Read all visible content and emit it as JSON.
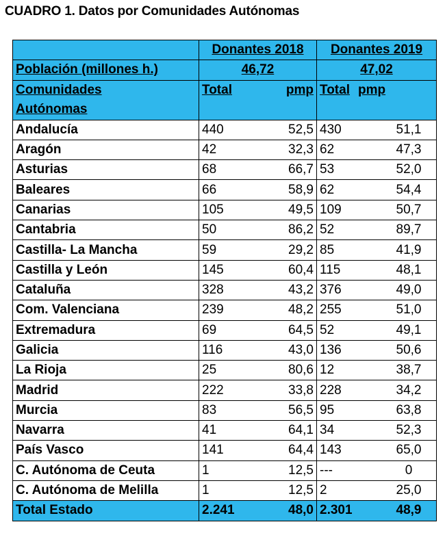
{
  "title": "CUADRO 1. Datos por Comunidades Autónomas",
  "header": {
    "donantes_2018": "Donantes 2018",
    "donantes_2019": "Donantes 2019",
    "poblacion_label": "Población (millones h.)",
    "poblacion_2018": "46,72",
    "poblacion_2019": "47,02",
    "comunidades_line1": "Comunidades",
    "comunidades_line2": "Autónomas",
    "total_2018": "Total",
    "pmp_2018": "pmp",
    "total_2019": "Total",
    "pmp_2019": "pmp"
  },
  "rows": [
    {
      "name": "Andalucía",
      "t18": "440",
      "p18": "52,5",
      "t19": "430",
      "p19": "51,1"
    },
    {
      "name": "Aragón",
      "t18": "42",
      "p18": "32,3",
      "t19": "62",
      "p19": "47,3"
    },
    {
      "name": "Asturias",
      "t18": "68",
      "p18": "66,7",
      "t19": "53",
      "p19": "52,0"
    },
    {
      "name": "Baleares",
      "t18": "66",
      "p18": "58,9",
      "t19": "62",
      "p19": "54,4"
    },
    {
      "name": "Canarias",
      "t18": "105",
      "p18": "49,5",
      "t19": "109",
      "p19": "50,7"
    },
    {
      "name": "Cantabria",
      "t18": "50",
      "p18": "86,2",
      "t19": "52",
      "p19": "89,7"
    },
    {
      "name": "Castilla- La Mancha",
      "t18": "59",
      "p18": "29,2",
      "t19": "85",
      "p19": "41,9"
    },
    {
      "name": "Castilla y León",
      "t18": "145",
      "p18": "60,4",
      "t19": "115",
      "p19": "48,1"
    },
    {
      "name": "Cataluña",
      "t18": "328",
      "p18": "43,2",
      "t19": "376",
      "p19": "49,0"
    },
    {
      "name": "Com. Valenciana",
      "t18": "239",
      "p18": "48,2",
      "t19": "255",
      "p19": "51,0"
    },
    {
      "name": "Extremadura",
      "t18": "69",
      "p18": "64,5",
      "t19": "52",
      "p19": "49,1"
    },
    {
      "name": "Galicia",
      "t18": "116",
      "p18": "43,0",
      "t19": "136",
      "p19": "50,6"
    },
    {
      "name": "La Rioja",
      "t18": "25",
      "p18": "80,6",
      "t19": "12",
      "p19": "38,7"
    },
    {
      "name": "Madrid",
      "t18": "222",
      "p18": "33,8",
      "t19": "228",
      "p19": "34,2"
    },
    {
      "name": "Murcia",
      "t18": "83",
      "p18": "56,5",
      "t19": "95",
      "p19": "63,8"
    },
    {
      "name": "Navarra",
      "t18": "41",
      "p18": "64,1",
      "t19": "34",
      "p19": "52,3"
    },
    {
      "name": "País Vasco",
      "t18": "141",
      "p18": "64,4",
      "t19": "143",
      "p19": "65,0"
    },
    {
      "name": "C. Autónoma de Ceuta",
      "t18": "1",
      "p18": "12,5",
      "t19": "---",
      "p19": "0"
    },
    {
      "name": "C. Autónoma de Melilla",
      "t18": "1",
      "p18": "12,5",
      "t19": "2",
      "p19": "25,0"
    }
  ],
  "total": {
    "name": "Total Estado",
    "t18": "2.241",
    "p18": "48,0",
    "t19": "2.301",
    "p19": "48,9"
  }
}
